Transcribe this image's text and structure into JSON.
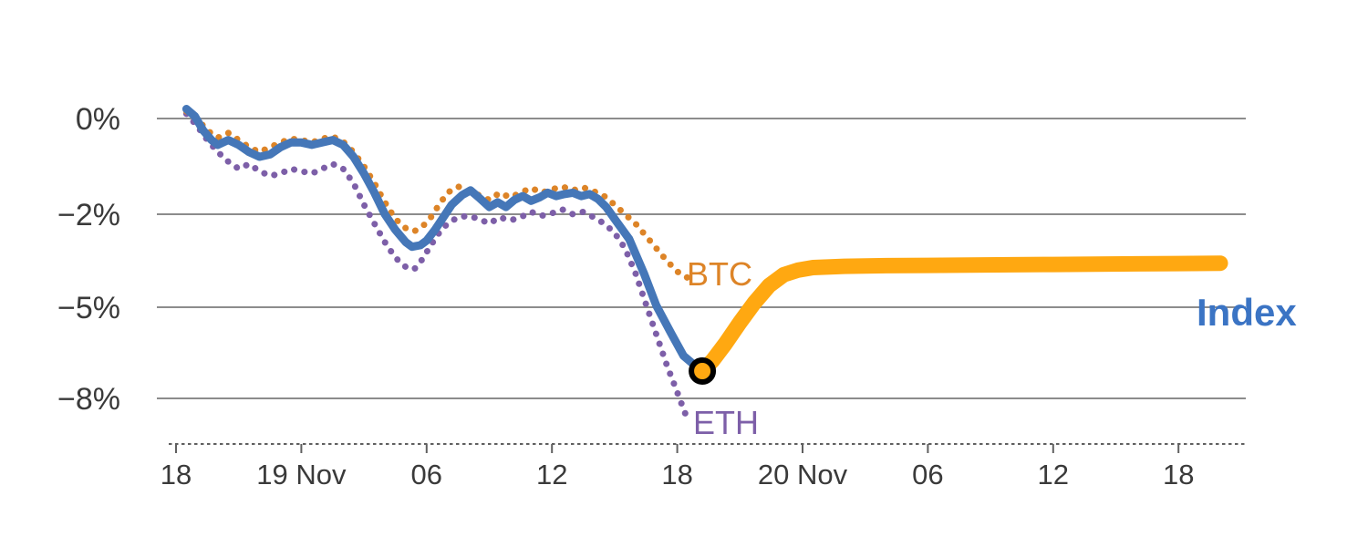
{
  "chart_data": {
    "type": "line",
    "title": "",
    "x_unit": "hours since Nov 18 18:00",
    "x_range_hours": [
      0,
      50
    ],
    "y_range_percent": [
      -9.3,
      0.6
    ],
    "grid": "horizontal-only",
    "legend_position": "end-of-line-labels",
    "grid_color": "#8c8c8c",
    "axis_color": "#606060",
    "tick_label_color": "#3a3a3a",
    "y_ticks": [
      {
        "value": 0,
        "label": "0%"
      },
      {
        "value": -2,
        "label": "−2%"
      },
      {
        "value": -5,
        "label": "−5%"
      },
      {
        "value": -8,
        "label": "−8%"
      }
    ],
    "x_ticks": [
      {
        "t": 0,
        "label": "18"
      },
      {
        "t": 6,
        "label": "19 Nov"
      },
      {
        "t": 12,
        "label": "06"
      },
      {
        "t": 18,
        "label": "12"
      },
      {
        "t": 24,
        "label": "18"
      },
      {
        "t": 30,
        "label": "20 Nov"
      },
      {
        "t": 36,
        "label": "06"
      },
      {
        "t": 42,
        "label": "12"
      },
      {
        "t": 48,
        "label": "18"
      }
    ],
    "series_labels": {
      "btc": "BTC",
      "eth": "ETH",
      "index": "Index"
    },
    "label_colors": {
      "btc": "#dd8427",
      "eth": "#7d5fa8",
      "index": "#3b74c4"
    },
    "series": [
      {
        "name": "ETH",
        "color": "#7d5fa8",
        "style": "dotted",
        "width": 7,
        "points": [
          [
            0.5,
            0.1
          ],
          [
            1.0,
            -0.15
          ],
          [
            1.5,
            -0.45
          ],
          [
            2.0,
            -0.7
          ],
          [
            2.5,
            -0.9
          ],
          [
            3.0,
            -1.05
          ],
          [
            3.5,
            -0.95
          ],
          [
            4.0,
            -1.1
          ],
          [
            4.5,
            -1.2
          ],
          [
            5.0,
            -1.15
          ],
          [
            5.5,
            -1.05
          ],
          [
            6.0,
            -1.1
          ],
          [
            6.5,
            -1.15
          ],
          [
            7.0,
            -1.05
          ],
          [
            7.5,
            -0.95
          ],
          [
            8.0,
            -1.05
          ],
          [
            8.5,
            -1.35
          ],
          [
            9.0,
            -1.8
          ],
          [
            9.5,
            -2.3
          ],
          [
            10.0,
            -2.9
          ],
          [
            10.5,
            -3.4
          ],
          [
            11.0,
            -3.7
          ],
          [
            11.4,
            -3.78
          ],
          [
            11.8,
            -3.45
          ],
          [
            12.2,
            -3.0
          ],
          [
            12.6,
            -2.6
          ],
          [
            13.0,
            -2.3
          ],
          [
            13.5,
            -2.1
          ],
          [
            14.0,
            -2.05
          ],
          [
            14.5,
            -2.15
          ],
          [
            15.0,
            -2.3
          ],
          [
            15.5,
            -2.1
          ],
          [
            16.0,
            -2.2
          ],
          [
            16.5,
            -2.1
          ],
          [
            17.0,
            -1.95
          ],
          [
            17.5,
            -2.05
          ],
          [
            18.0,
            -1.98
          ],
          [
            18.5,
            -1.9
          ],
          [
            19.0,
            -2.0
          ],
          [
            19.5,
            -1.95
          ],
          [
            20.0,
            -2.1
          ],
          [
            20.5,
            -2.3
          ],
          [
            21.0,
            -2.6
          ],
          [
            21.5,
            -3.1
          ],
          [
            22.0,
            -3.9
          ],
          [
            22.5,
            -4.9
          ],
          [
            23.0,
            -5.9
          ],
          [
            23.5,
            -6.9
          ],
          [
            24.0,
            -7.8
          ],
          [
            24.3,
            -8.35
          ],
          [
            24.5,
            -8.7
          ]
        ]
      },
      {
        "name": "BTC",
        "color": "#dd8427",
        "style": "dotted",
        "width": 7,
        "points": [
          [
            0.5,
            0.15
          ],
          [
            1.0,
            0.0
          ],
          [
            1.5,
            -0.25
          ],
          [
            2.0,
            -0.4
          ],
          [
            2.5,
            -0.3
          ],
          [
            3.0,
            -0.45
          ],
          [
            3.5,
            -0.6
          ],
          [
            4.0,
            -0.7
          ],
          [
            4.5,
            -0.6
          ],
          [
            5.0,
            -0.5
          ],
          [
            5.5,
            -0.42
          ],
          [
            6.0,
            -0.45
          ],
          [
            6.5,
            -0.5
          ],
          [
            7.0,
            -0.42
          ],
          [
            7.5,
            -0.38
          ],
          [
            8.0,
            -0.48
          ],
          [
            8.5,
            -0.7
          ],
          [
            9.0,
            -1.0
          ],
          [
            9.5,
            -1.35
          ],
          [
            10.0,
            -1.75
          ],
          [
            10.5,
            -2.15
          ],
          [
            11.0,
            -2.45
          ],
          [
            11.4,
            -2.55
          ],
          [
            11.8,
            -2.4
          ],
          [
            12.2,
            -2.1
          ],
          [
            12.6,
            -1.8
          ],
          [
            13.0,
            -1.55
          ],
          [
            13.5,
            -1.42
          ],
          [
            14.0,
            -1.5
          ],
          [
            14.5,
            -1.6
          ],
          [
            15.0,
            -1.7
          ],
          [
            15.5,
            -1.55
          ],
          [
            16.0,
            -1.65
          ],
          [
            16.5,
            -1.55
          ],
          [
            17.0,
            -1.45
          ],
          [
            17.5,
            -1.55
          ],
          [
            18.0,
            -1.48
          ],
          [
            18.5,
            -1.42
          ],
          [
            19.0,
            -1.5
          ],
          [
            19.5,
            -1.44
          ],
          [
            20.0,
            -1.52
          ],
          [
            20.5,
            -1.62
          ],
          [
            21.0,
            -1.8
          ],
          [
            21.5,
            -2.0
          ],
          [
            22.0,
            -2.3
          ],
          [
            22.5,
            -2.7
          ],
          [
            23.0,
            -3.1
          ],
          [
            23.5,
            -3.5
          ],
          [
            24.0,
            -3.85
          ],
          [
            24.5,
            -4.05
          ],
          [
            24.8,
            -4.1
          ]
        ]
      },
      {
        "name": "Index",
        "color": "#4577b8",
        "style": "solid",
        "width": 9,
        "points": [
          [
            0.5,
            0.2
          ],
          [
            0.9,
            0.05
          ],
          [
            1.3,
            -0.25
          ],
          [
            1.7,
            -0.45
          ],
          [
            2.0,
            -0.55
          ],
          [
            2.5,
            -0.45
          ],
          [
            3.0,
            -0.55
          ],
          [
            3.5,
            -0.7
          ],
          [
            4.0,
            -0.8
          ],
          [
            4.5,
            -0.75
          ],
          [
            5.0,
            -0.6
          ],
          [
            5.5,
            -0.5
          ],
          [
            6.0,
            -0.5
          ],
          [
            6.5,
            -0.55
          ],
          [
            7.0,
            -0.5
          ],
          [
            7.5,
            -0.45
          ],
          [
            8.0,
            -0.55
          ],
          [
            8.5,
            -0.8
          ],
          [
            9.0,
            -1.15
          ],
          [
            9.5,
            -1.55
          ],
          [
            10.0,
            -2.0
          ],
          [
            10.5,
            -2.5
          ],
          [
            11.0,
            -2.9
          ],
          [
            11.3,
            -3.05
          ],
          [
            11.7,
            -3.0
          ],
          [
            12.0,
            -2.85
          ],
          [
            12.4,
            -2.5
          ],
          [
            12.8,
            -2.1
          ],
          [
            13.2,
            -1.8
          ],
          [
            13.7,
            -1.6
          ],
          [
            14.1,
            -1.5
          ],
          [
            14.5,
            -1.65
          ],
          [
            15.0,
            -1.85
          ],
          [
            15.4,
            -1.75
          ],
          [
            15.8,
            -1.85
          ],
          [
            16.2,
            -1.7
          ],
          [
            16.6,
            -1.62
          ],
          [
            17.0,
            -1.72
          ],
          [
            17.4,
            -1.65
          ],
          [
            17.8,
            -1.55
          ],
          [
            18.2,
            -1.62
          ],
          [
            18.6,
            -1.58
          ],
          [
            19.0,
            -1.55
          ],
          [
            19.4,
            -1.62
          ],
          [
            19.8,
            -1.58
          ],
          [
            20.2,
            -1.68
          ],
          [
            20.6,
            -1.85
          ],
          [
            21.0,
            -2.15
          ],
          [
            21.7,
            -2.8
          ],
          [
            22.4,
            -3.9
          ],
          [
            23.0,
            -4.95
          ],
          [
            23.7,
            -5.85
          ],
          [
            24.3,
            -6.6
          ],
          [
            24.9,
            -6.95
          ],
          [
            25.2,
            -7.1
          ]
        ]
      },
      {
        "name": "Index (latest segment)",
        "color": "#ffa811",
        "style": "solid",
        "width": 17,
        "points": [
          [
            25.2,
            -7.1
          ],
          [
            25.7,
            -6.75
          ],
          [
            26.3,
            -6.2
          ],
          [
            27.0,
            -5.5
          ],
          [
            27.7,
            -4.85
          ],
          [
            28.4,
            -4.3
          ],
          [
            29.1,
            -3.95
          ],
          [
            29.8,
            -3.8
          ],
          [
            30.5,
            -3.72
          ],
          [
            32,
            -3.68
          ],
          [
            34,
            -3.66
          ],
          [
            36,
            -3.65
          ],
          [
            38,
            -3.64
          ],
          [
            40,
            -3.63
          ],
          [
            42,
            -3.62
          ],
          [
            44,
            -3.61
          ],
          [
            46,
            -3.6
          ],
          [
            48,
            -3.59
          ],
          [
            50,
            -3.58
          ]
        ]
      }
    ],
    "marker": {
      "t": 25.2,
      "value": -7.1,
      "fill": "#ffa811",
      "ring": "#000000",
      "radius": 12,
      "ring_width": 6
    }
  }
}
